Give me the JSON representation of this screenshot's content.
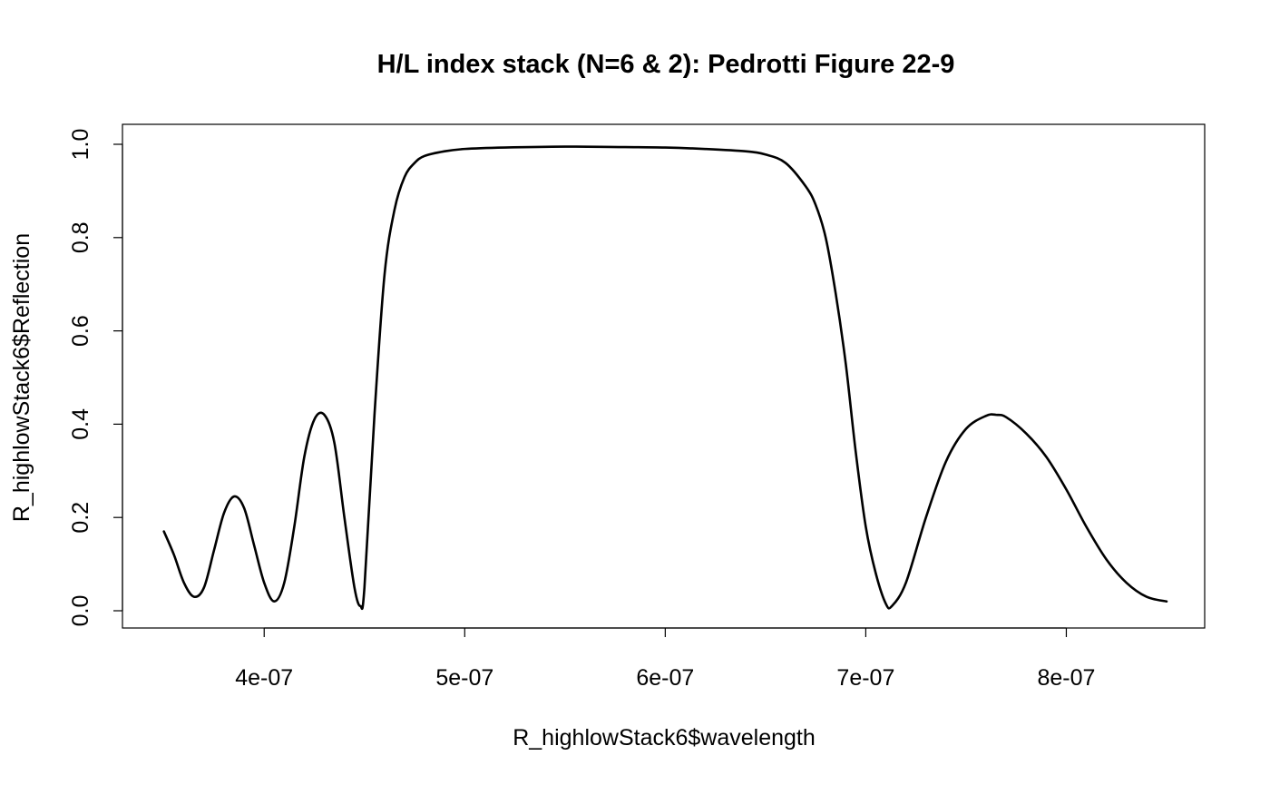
{
  "chart_data": {
    "type": "line",
    "title": "H/L index stack (N=6 & 2): Pedrotti Figure 22-9",
    "xlabel": "R_highlowStack6$wavelength",
    "ylabel": "R_highlowStack6$Reflection",
    "xlim": [
      3.5e-07,
      8.5e-07
    ],
    "ylim": [
      0,
      1
    ],
    "x_ticks": [
      4e-07,
      5e-07,
      6e-07,
      7e-07,
      8e-07
    ],
    "x_tick_labels": [
      "4e-07",
      "5e-07",
      "6e-07",
      "7e-07",
      "8e-07"
    ],
    "y_ticks": [
      0,
      0.2,
      0.4,
      0.6,
      0.8,
      1
    ],
    "y_tick_labels": [
      "0.0",
      "0.2",
      "0.4",
      "0.6",
      "0.8",
      "1.0"
    ],
    "grid": false,
    "legend": "none",
    "series": [
      {
        "color": "#000000",
        "x": [
          3.5e-07,
          3.55e-07,
          3.6e-07,
          3.65e-07,
          3.7e-07,
          3.75e-07,
          3.8e-07,
          3.85e-07,
          3.9e-07,
          3.95e-07,
          4e-07,
          4.05e-07,
          4.1e-07,
          4.15e-07,
          4.2e-07,
          4.25e-07,
          4.3e-07,
          4.35e-07,
          4.4e-07,
          4.45e-07,
          4.48e-07,
          4.5e-07,
          4.55e-07,
          4.6e-07,
          4.65e-07,
          4.7e-07,
          4.75e-07,
          4.8e-07,
          4.9e-07,
          5e-07,
          5.2e-07,
          5.5e-07,
          5.8e-07,
          6e-07,
          6.2e-07,
          6.4e-07,
          6.5e-07,
          6.6e-07,
          6.7e-07,
          6.75e-07,
          6.8e-07,
          6.85e-07,
          6.9e-07,
          6.95e-07,
          7e-07,
          7.05e-07,
          7.1e-07,
          7.13e-07,
          7.2e-07,
          7.3e-07,
          7.4e-07,
          7.5e-07,
          7.6e-07,
          7.65e-07,
          7.7e-07,
          7.8e-07,
          7.9e-07,
          8e-07,
          8.1e-07,
          8.2e-07,
          8.3e-07,
          8.4e-07,
          8.5e-07
        ],
        "y": [
          0.17,
          0.12,
          0.06,
          0.03,
          0.05,
          0.13,
          0.21,
          0.245,
          0.22,
          0.14,
          0.06,
          0.02,
          0.06,
          0.18,
          0.33,
          0.41,
          0.42,
          0.36,
          0.2,
          0.05,
          0.01,
          0.05,
          0.42,
          0.72,
          0.86,
          0.93,
          0.96,
          0.975,
          0.985,
          0.99,
          0.993,
          0.995,
          0.994,
          0.993,
          0.99,
          0.985,
          0.978,
          0.96,
          0.91,
          0.87,
          0.8,
          0.68,
          0.53,
          0.34,
          0.18,
          0.08,
          0.015,
          0.01,
          0.06,
          0.2,
          0.32,
          0.39,
          0.418,
          0.42,
          0.415,
          0.38,
          0.33,
          0.26,
          0.18,
          0.11,
          0.06,
          0.03,
          0.02
        ]
      }
    ]
  }
}
